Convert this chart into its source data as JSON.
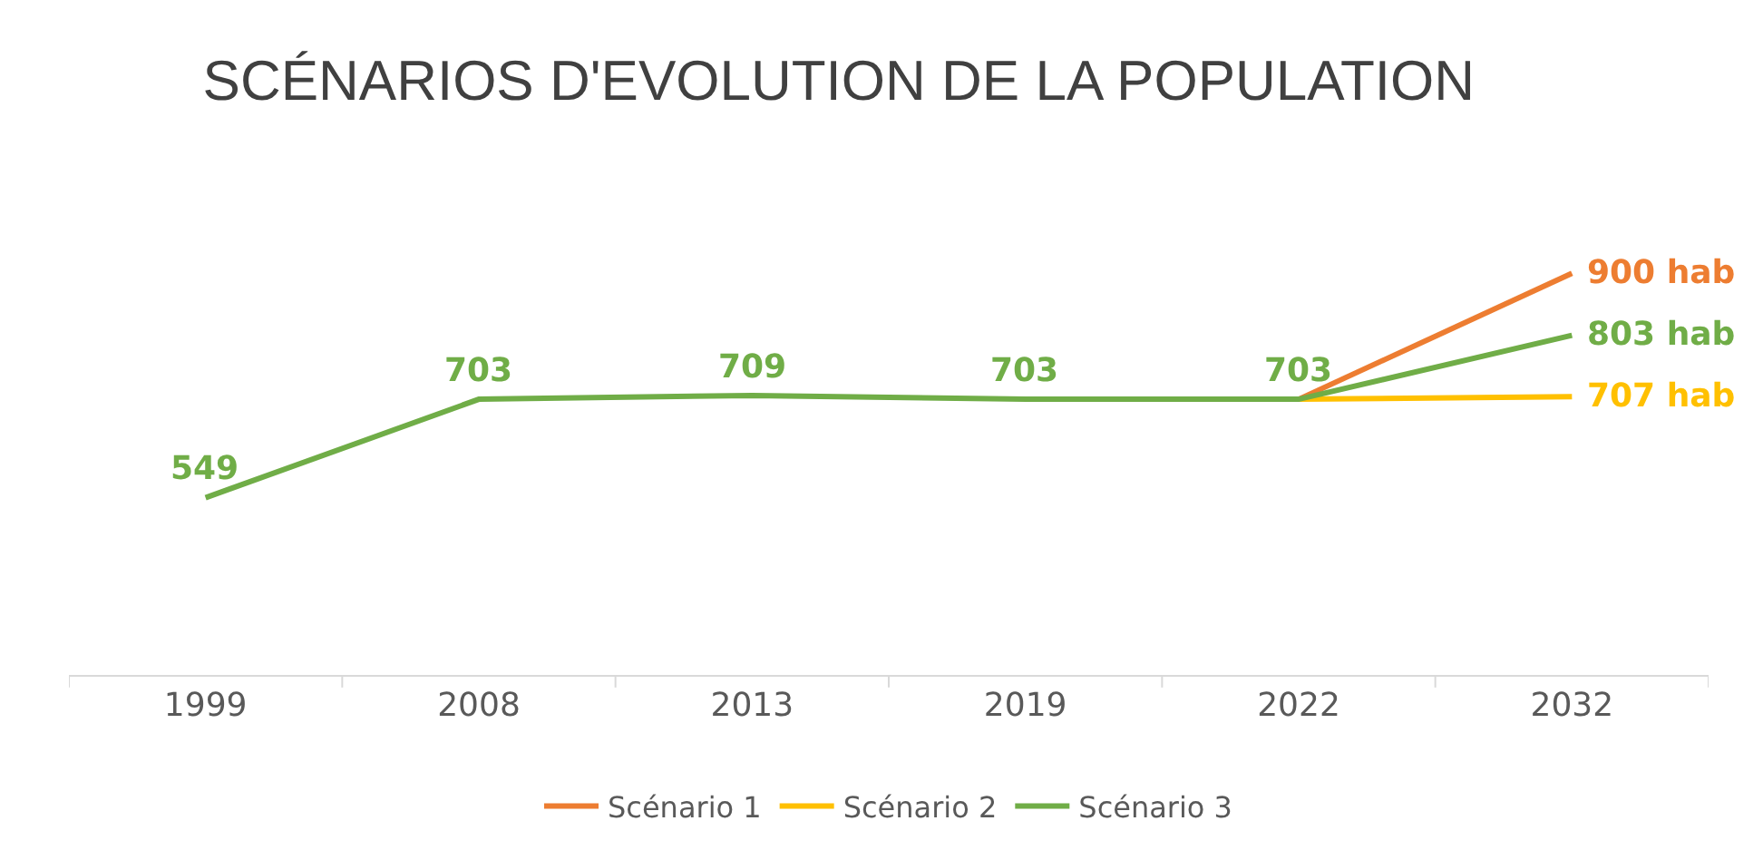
{
  "chart_data": {
    "type": "line",
    "title": "SCÉNARIOS D'EVOLUTION DE LA POPULATION",
    "categories": [
      "1999",
      "2008",
      "2013",
      "2019",
      "2022",
      "2032"
    ],
    "series": [
      {
        "name": "Scénario 1",
        "color": "#ed7d31",
        "values": [
          null,
          null,
          null,
          null,
          703,
          900
        ],
        "value_labels": [
          null,
          null,
          null,
          null,
          null,
          "900 hab"
        ]
      },
      {
        "name": "Scénario 2",
        "color": "#ffc000",
        "values": [
          null,
          null,
          null,
          null,
          703,
          707
        ],
        "value_labels": [
          null,
          null,
          null,
          null,
          null,
          "707 hab"
        ]
      },
      {
        "name": "Scénario 3",
        "color": "#70ad47",
        "values": [
          549,
          703,
          709,
          703,
          703,
          803
        ],
        "value_labels": [
          "549",
          "703",
          "709",
          "703",
          "703",
          "803 hab"
        ]
      }
    ],
    "legend": "bottom",
    "grid": false,
    "marker": "none",
    "line_style": "solid"
  }
}
